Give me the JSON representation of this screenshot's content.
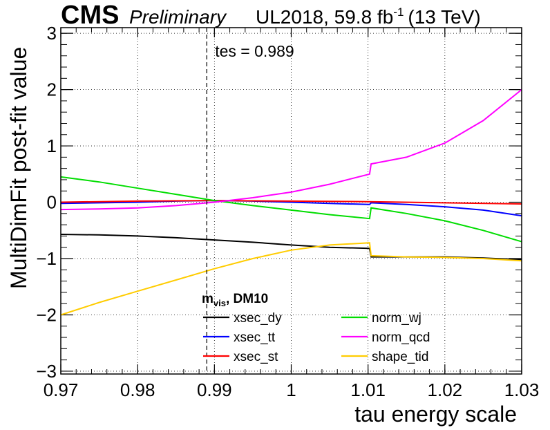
{
  "header": {
    "experiment": "CMS",
    "status": "Preliminary",
    "dataset": "UL2018, 59.8 fb",
    "lumi_exp": "-1",
    "energy": "(13 TeV)"
  },
  "chart_data": {
    "type": "line",
    "xlabel": "tau energy scale",
    "ylabel": "MultiDimFit post-fit value",
    "xlim": [
      0.97,
      1.03
    ],
    "ylim": [
      -3.05,
      3.1
    ],
    "xticks": [
      0.97,
      0.98,
      0.99,
      1.0,
      1.01,
      1.02,
      1.03
    ],
    "xtick_labels": [
      "0.97",
      "0.98",
      "0.99",
      "1",
      "1.01",
      "1.02",
      "1.03"
    ],
    "yticks": [
      -3,
      -2,
      -1,
      0,
      1,
      2,
      3
    ],
    "ytick_labels": [
      "−3",
      "−2",
      "−1",
      "0",
      "1",
      "2",
      "3"
    ],
    "grid": true,
    "legend_placement": "bottom-center",
    "legend_title_main": "m",
    "legend_title_sub": "vis",
    "legend_title_suffix": ", DM10",
    "annotation": {
      "text": "tes = 0.989",
      "x": 0.989
    },
    "series": [
      {
        "name": "xsec_dy",
        "color": "#000000",
        "x": [
          0.97,
          0.975,
          0.98,
          0.985,
          0.99,
          0.995,
          1.0,
          1.005,
          1.0102,
          1.0104,
          1.015,
          1.02,
          1.025,
          1.03
        ],
        "y": [
          -0.57,
          -0.58,
          -0.6,
          -0.63,
          -0.67,
          -0.71,
          -0.76,
          -0.8,
          -0.82,
          -0.97,
          -0.97,
          -0.97,
          -0.99,
          -1.02
        ]
      },
      {
        "name": "xsec_tt",
        "color": "#0000ff",
        "x": [
          0.97,
          0.975,
          0.98,
          0.985,
          0.99,
          0.995,
          1.0,
          1.005,
          1.0102,
          1.0104,
          1.015,
          1.02,
          1.025,
          1.03
        ],
        "y": [
          -0.02,
          -0.01,
          0.0,
          0.02,
          0.03,
          0.02,
          0.0,
          -0.02,
          -0.04,
          -0.01,
          -0.04,
          -0.08,
          -0.14,
          -0.24
        ]
      },
      {
        "name": "xsec_st",
        "color": "#ff0000",
        "x": [
          0.97,
          0.98,
          0.99,
          1.0,
          1.01,
          1.02,
          1.03
        ],
        "y": [
          0.0,
          0.02,
          0.03,
          0.02,
          0.01,
          -0.01,
          -0.03
        ]
      },
      {
        "name": "norm_wj",
        "color": "#00dd00",
        "x": [
          0.97,
          0.975,
          0.98,
          0.985,
          0.99,
          0.995,
          1.0,
          1.005,
          1.0102,
          1.0104,
          1.015,
          1.02,
          1.025,
          1.03
        ],
        "y": [
          0.45,
          0.36,
          0.25,
          0.14,
          0.03,
          -0.06,
          -0.14,
          -0.22,
          -0.29,
          -0.1,
          -0.2,
          -0.33,
          -0.5,
          -0.7
        ]
      },
      {
        "name": "norm_qcd",
        "color": "#ff00ff",
        "x": [
          0.97,
          0.975,
          0.98,
          0.985,
          0.99,
          0.995,
          1.0,
          1.005,
          1.0102,
          1.0104,
          1.015,
          1.02,
          1.025,
          1.03
        ],
        "y": [
          -0.13,
          -0.12,
          -0.1,
          -0.06,
          0.0,
          0.08,
          0.18,
          0.32,
          0.5,
          0.68,
          0.8,
          1.05,
          1.45,
          2.0
        ]
      },
      {
        "name": "shape_tid",
        "color": "#ffcc00",
        "x": [
          0.97,
          0.975,
          0.98,
          0.985,
          0.99,
          0.995,
          1.0,
          1.005,
          1.0102,
          1.0104,
          1.015,
          1.02,
          1.025,
          1.03
        ],
        "y": [
          -2.0,
          -1.78,
          -1.58,
          -1.38,
          -1.18,
          -1.0,
          -0.85,
          -0.76,
          -0.72,
          -0.95,
          -0.97,
          -0.98,
          -1.0,
          -1.04
        ]
      }
    ]
  }
}
